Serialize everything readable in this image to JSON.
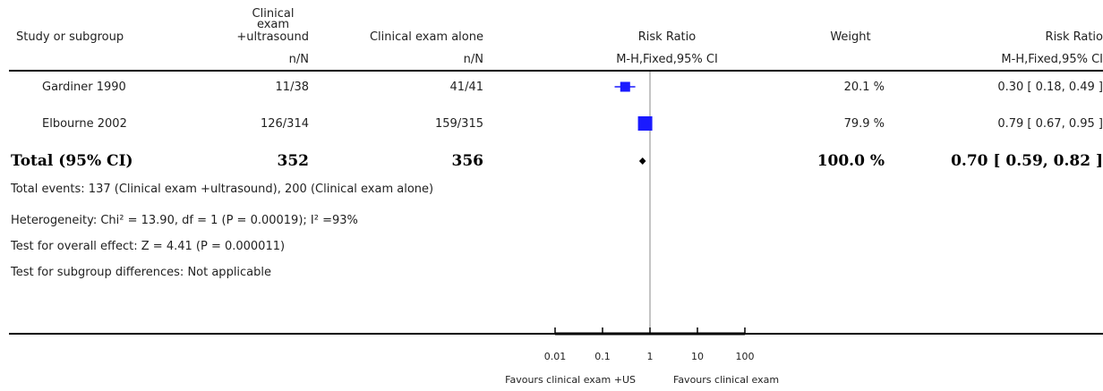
{
  "headers": {
    "study": "Study or subgroup",
    "exp_line1": "Clinical",
    "exp_line2": "exam",
    "exp_line3": "+ultrasound",
    "ctrl": "Clinical exam alone",
    "rr_plot": "Risk Ratio",
    "weight": "Weight",
    "rr_text": "Risk Ratio",
    "exp_sub": "n/N",
    "ctrl_sub": "n/N",
    "rr_plot_sub": "M-H,Fixed,95% CI",
    "rr_text_sub": "M-H,Fixed,95% CI"
  },
  "studies": [
    {
      "name": "Gardiner 1990",
      "exp": "11/38",
      "ctrl": "41/41",
      "weight": "20.1 %",
      "ci_text": "0.30 [ 0.18, 0.49 ]"
    },
    {
      "name": "Elbourne 2002",
      "exp": "126/314",
      "ctrl": "159/315",
      "weight": "79.9 %",
      "ci_text": "0.79 [ 0.67, 0.95 ]"
    }
  ],
  "total": {
    "label": "Total (95% CI)",
    "exp": "352",
    "ctrl": "356",
    "weight": "100.0 %",
    "ci_text": "0.70 [ 0.59, 0.82 ]"
  },
  "notes": {
    "events": "Total events: 137 (Clinical exam +ultrasound), 200 (Clinical exam alone)",
    "heterogeneity": "Heterogeneity: Chi² = 13.90, df = 1 (P = 0.00019); I² =93%",
    "overall": "Test for overall effect: Z = 4.41 (P = 0.000011)",
    "subgroup": "Test for subgroup differences: Not applicable"
  },
  "axis": {
    "ticks": [
      "0.01",
      "0.1",
      "1",
      "10",
      "100"
    ],
    "favours_left": "Favours clinical exam +US",
    "favours_right": "Favours clinical exam"
  },
  "chart_data": {
    "type": "forest",
    "scale": "log",
    "xlim": [
      0.01,
      100
    ],
    "ticks": [
      0.01,
      0.1,
      1,
      10,
      100
    ],
    "studies": [
      {
        "name": "Gardiner 1990",
        "rr": 0.3,
        "lo": 0.18,
        "hi": 0.49,
        "weight": 20.1
      },
      {
        "name": "Elbourne 2002",
        "rr": 0.79,
        "lo": 0.67,
        "hi": 0.95,
        "weight": 79.9
      }
    ],
    "pooled": {
      "rr": 0.7,
      "lo": 0.59,
      "hi": 0.82
    },
    "marker_color": "#1a1aff"
  }
}
